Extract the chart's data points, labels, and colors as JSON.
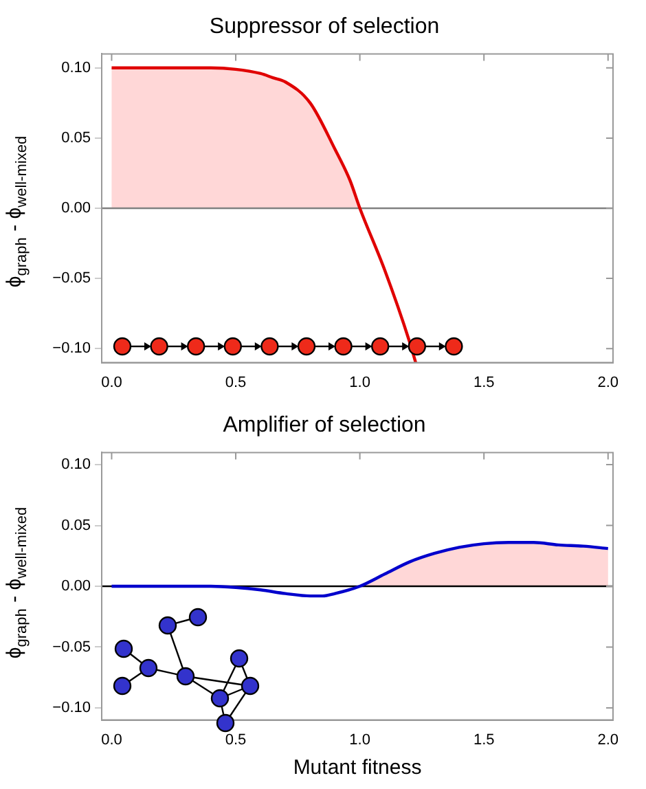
{
  "chart_data": [
    {
      "type": "line",
      "title": "Suppressor of selection",
      "ylabel": "ϕ$_{graph}$ - ϕ$_{well-mixed}$",
      "x": [
        0,
        0.1,
        0.2,
        0.3,
        0.4,
        0.5,
        0.6,
        0.65,
        0.7,
        0.8,
        0.9,
        0.96,
        1.0,
        1.1,
        1.2,
        1.225
      ],
      "series": [
        {
          "color": "#e00000",
          "values": [
            0.1,
            0.1,
            0.1,
            0.1,
            0.1,
            0.099,
            0.096,
            0.093,
            0.09,
            0.075,
            0.042,
            0.02,
            0,
            -0.044,
            -0.095,
            -0.11
          ]
        }
      ],
      "xlim": [
        -0.04,
        2.02
      ],
      "ylim": [
        -0.11,
        0.11
      ],
      "xticks": [
        {
          "value": 0,
          "label": "0.0"
        },
        {
          "value": 0.5,
          "label": "0.5"
        },
        {
          "value": 1,
          "label": "1.0"
        },
        {
          "value": 1.5,
          "label": "1.5"
        },
        {
          "value": 2,
          "label": "2.0"
        }
      ],
      "yticks": [
        {
          "value": -0.1,
          "label": "−0.10"
        },
        {
          "value": -0.05,
          "label": "−0.05"
        },
        {
          "value": 0,
          "label": "0.00"
        },
        {
          "value": 0.05,
          "label": "0.05"
        },
        {
          "value": 0.1,
          "label": "0.10"
        }
      ],
      "ref_lines": [
        {
          "axis": "y",
          "value": 0,
          "color": "#808080"
        }
      ],
      "grid": false,
      "legend": false
    },
    {
      "type": "line",
      "title": "Amplifier of selection",
      "xlabel": "Mutant fitness",
      "ylabel": "ϕ$_{graph}$ - ϕ$_{well-mixed}$",
      "x": [
        0,
        0.1,
        0.2,
        0.3,
        0.4,
        0.5,
        0.6,
        0.7,
        0.8,
        0.85,
        0.9,
        1.0,
        1.1,
        1.2,
        1.3,
        1.4,
        1.5,
        1.6,
        1.7,
        1.8,
        1.9,
        2.0
      ],
      "series": [
        {
          "color": "#0000cc",
          "values": [
            0,
            0,
            0,
            0,
            0,
            -0.001,
            -0.003,
            -0.006,
            -0.008,
            -0.008,
            -0.006,
            0,
            0.01,
            0.02,
            0.027,
            0.032,
            0.035,
            0.036,
            0.036,
            0.034,
            0.033,
            0.031
          ]
        }
      ],
      "xlim": [
        -0.04,
        2.02
      ],
      "ylim": [
        -0.11,
        0.11
      ],
      "xticks": [
        {
          "value": 0,
          "label": "0.0"
        },
        {
          "value": 0.5,
          "label": "0.5"
        },
        {
          "value": 1,
          "label": "1.0"
        },
        {
          "value": 1.5,
          "label": "1.5"
        },
        {
          "value": 2,
          "label": "2.0"
        }
      ],
      "yticks": [
        {
          "value": -0.1,
          "label": "−0.10"
        },
        {
          "value": -0.05,
          "label": "−0.05"
        },
        {
          "value": 0,
          "label": "0.00"
        },
        {
          "value": 0.05,
          "label": "0.05"
        },
        {
          "value": 0.1,
          "label": "0.10"
        }
      ],
      "ref_lines": [
        {
          "axis": "y",
          "value": 0,
          "color": "#000000"
        }
      ],
      "grid": false,
      "legend": false
    }
  ]
}
